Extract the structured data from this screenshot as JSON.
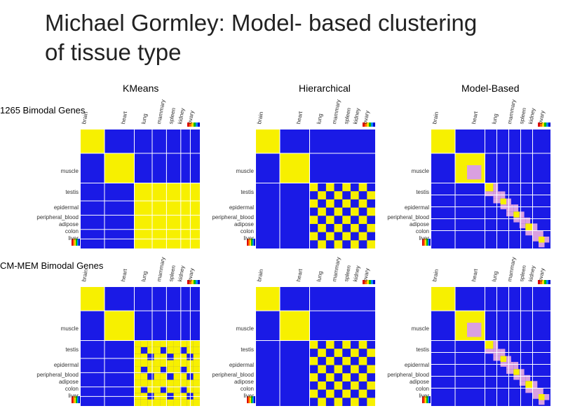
{
  "slide": {
    "title_line1": "Michael Gormley: Model- based clustering",
    "title_line2": "of tissue type"
  },
  "columns": [
    "KMeans",
    "Hierarchical",
    "Model-Based"
  ],
  "rows": [
    "1265 Bimodal Genes",
    "CM-MEM Bimodal Genes"
  ],
  "colors": {
    "blue": "#1a1ae6",
    "yellow": "#f7f000",
    "pink": "#d9a0e0",
    "white": "#ffffff"
  },
  "panels": [
    {
      "id": "kmeans-1265",
      "y_labels": [
        "muscle",
        "testis",
        "epidermal",
        "peripheral_blood",
        "adipose",
        "colon",
        "liver"
      ],
      "x_labels": [
        "brain",
        "heart",
        "lung",
        "mammary",
        "spleen",
        "kidney",
        "ovary"
      ]
    },
    {
      "id": "hier-1265",
      "y_labels": [
        "muscle",
        "testis",
        "epidermal",
        "peripheral_blood",
        "adipose",
        "colon",
        "liver"
      ],
      "x_labels": [
        "brain",
        "heart",
        "lung",
        "mammary",
        "spleen",
        "kidney",
        "ovary"
      ]
    },
    {
      "id": "model-1265",
      "y_labels": [
        "muscle",
        "testis",
        "epidermal",
        "peripheral_blood",
        "adipose",
        "colon",
        "liver"
      ],
      "x_labels": [
        "brain",
        "heart",
        "lung",
        "mammary",
        "spleen",
        "kidney",
        "ovary"
      ]
    },
    {
      "id": "kmeans-cmmem",
      "y_labels": [
        "muscle",
        "testis",
        "epidermal",
        "peripheral_blood",
        "adipose",
        "colon",
        "liver"
      ],
      "x_labels": [
        "brain",
        "heart",
        "lung",
        "mammary",
        "spleen",
        "kidney",
        "ovary"
      ]
    },
    {
      "id": "hier-cmmem",
      "y_labels": [
        "muscle",
        "testis",
        "epidermal",
        "peripheral_blood",
        "adipose",
        "colon",
        "liver"
      ],
      "x_labels": [
        "brain",
        "heart",
        "lung",
        "mammary",
        "spleen",
        "kidney",
        "ovary"
      ]
    },
    {
      "id": "model-cmmem",
      "y_labels": [
        "muscle",
        "testis",
        "epidermal",
        "peripheral_blood",
        "adipose",
        "colon",
        "liver"
      ],
      "x_labels": [
        "brain",
        "heart",
        "lung",
        "mammary",
        "spleen",
        "kidney",
        "ovary"
      ]
    }
  ]
}
